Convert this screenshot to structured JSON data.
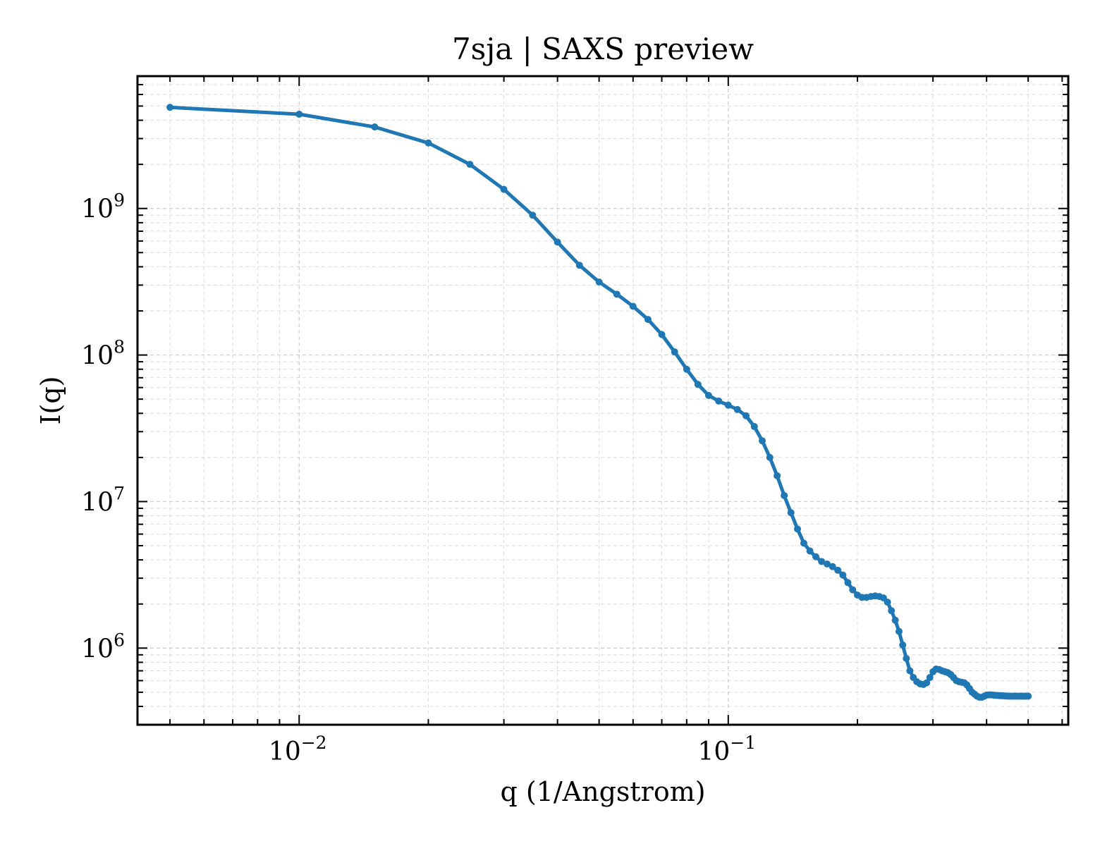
{
  "chart_data": {
    "type": "line",
    "title": "7sja | SAXS preview",
    "xlabel": "q (1/Angstrom)",
    "ylabel": "I(q)",
    "xscale": "log",
    "yscale": "log",
    "xlim": [
      0.0042,
      0.62
    ],
    "ylim": [
      300000,
      8000000000
    ],
    "grid": true,
    "x_ticks": [
      {
        "value": 0.01,
        "base": "10",
        "exp": "−2"
      },
      {
        "value": 0.1,
        "base": "10",
        "exp": "−1"
      }
    ],
    "y_ticks": [
      {
        "value": 1000000,
        "base": "10",
        "exp": "6"
      },
      {
        "value": 10000000,
        "base": "10",
        "exp": "7"
      },
      {
        "value": 100000000,
        "base": "10",
        "exp": "8"
      },
      {
        "value": 1000000000,
        "base": "10",
        "exp": "9"
      }
    ],
    "colors": {
      "series": "#1f77b4",
      "grid": "#cccccc",
      "axes": "#000000"
    },
    "series": [
      {
        "x": [
          0.005,
          0.01,
          0.015,
          0.02,
          0.025,
          0.03,
          0.035,
          0.04,
          0.045,
          0.05,
          0.055,
          0.06,
          0.065,
          0.07,
          0.075,
          0.08,
          0.085,
          0.09,
          0.095,
          0.1,
          0.105,
          0.11,
          0.115,
          0.12,
          0.125,
          0.13,
          0.135,
          0.14,
          0.145,
          0.15,
          0.155,
          0.16,
          0.165,
          0.17,
          0.175,
          0.18,
          0.185,
          0.19,
          0.195,
          0.2,
          0.205,
          0.21,
          0.215,
          0.22,
          0.225,
          0.23,
          0.235,
          0.24,
          0.245,
          0.25,
          0.255,
          0.26,
          0.265,
          0.27,
          0.275,
          0.28,
          0.285,
          0.29,
          0.295,
          0.3,
          0.305,
          0.31,
          0.315,
          0.32,
          0.325,
          0.33,
          0.335,
          0.34,
          0.345,
          0.35,
          0.355,
          0.36,
          0.365,
          0.37,
          0.375,
          0.38,
          0.385,
          0.39,
          0.395,
          0.4,
          0.405,
          0.41,
          0.415,
          0.42,
          0.425,
          0.43,
          0.435,
          0.44,
          0.445,
          0.45,
          0.455,
          0.46,
          0.465,
          0.47,
          0.475,
          0.48,
          0.485,
          0.49,
          0.495,
          0.5
        ],
        "y": [
          4900000000,
          4400000000,
          3600000000,
          2800000000,
          2000000000,
          1350000000,
          900000000,
          590000000,
          410000000,
          315000000,
          260000000,
          215000000,
          175000000,
          138000000,
          105000000,
          80000000,
          63000000,
          53000000,
          48500000,
          45500000,
          42500000,
          38500000,
          32500000,
          26000000,
          20000000,
          15000000,
          11000000,
          8400000,
          6500000,
          5200000,
          4600000,
          4200000,
          3900000,
          3750000,
          3600000,
          3400000,
          3150000,
          2800000,
          2500000,
          2300000,
          2220000,
          2220000,
          2250000,
          2270000,
          2250000,
          2200000,
          2060000,
          1800000,
          1550000,
          1300000,
          1050000,
          850000,
          700000,
          630000,
          590000,
          570000,
          565000,
          580000,
          630000,
          690000,
          720000,
          715000,
          700000,
          690000,
          680000,
          660000,
          630000,
          600000,
          590000,
          585000,
          580000,
          560000,
          530000,
          500000,
          485000,
          470000,
          462000,
          462000,
          470000,
          478000,
          480000,
          480000,
          478000,
          476000,
          475000,
          474000,
          473000,
          472000,
          471000,
          470000,
          470000,
          470000,
          470000,
          470000,
          470000,
          470000,
          470000,
          470000,
          470000,
          470000
        ]
      }
    ]
  }
}
